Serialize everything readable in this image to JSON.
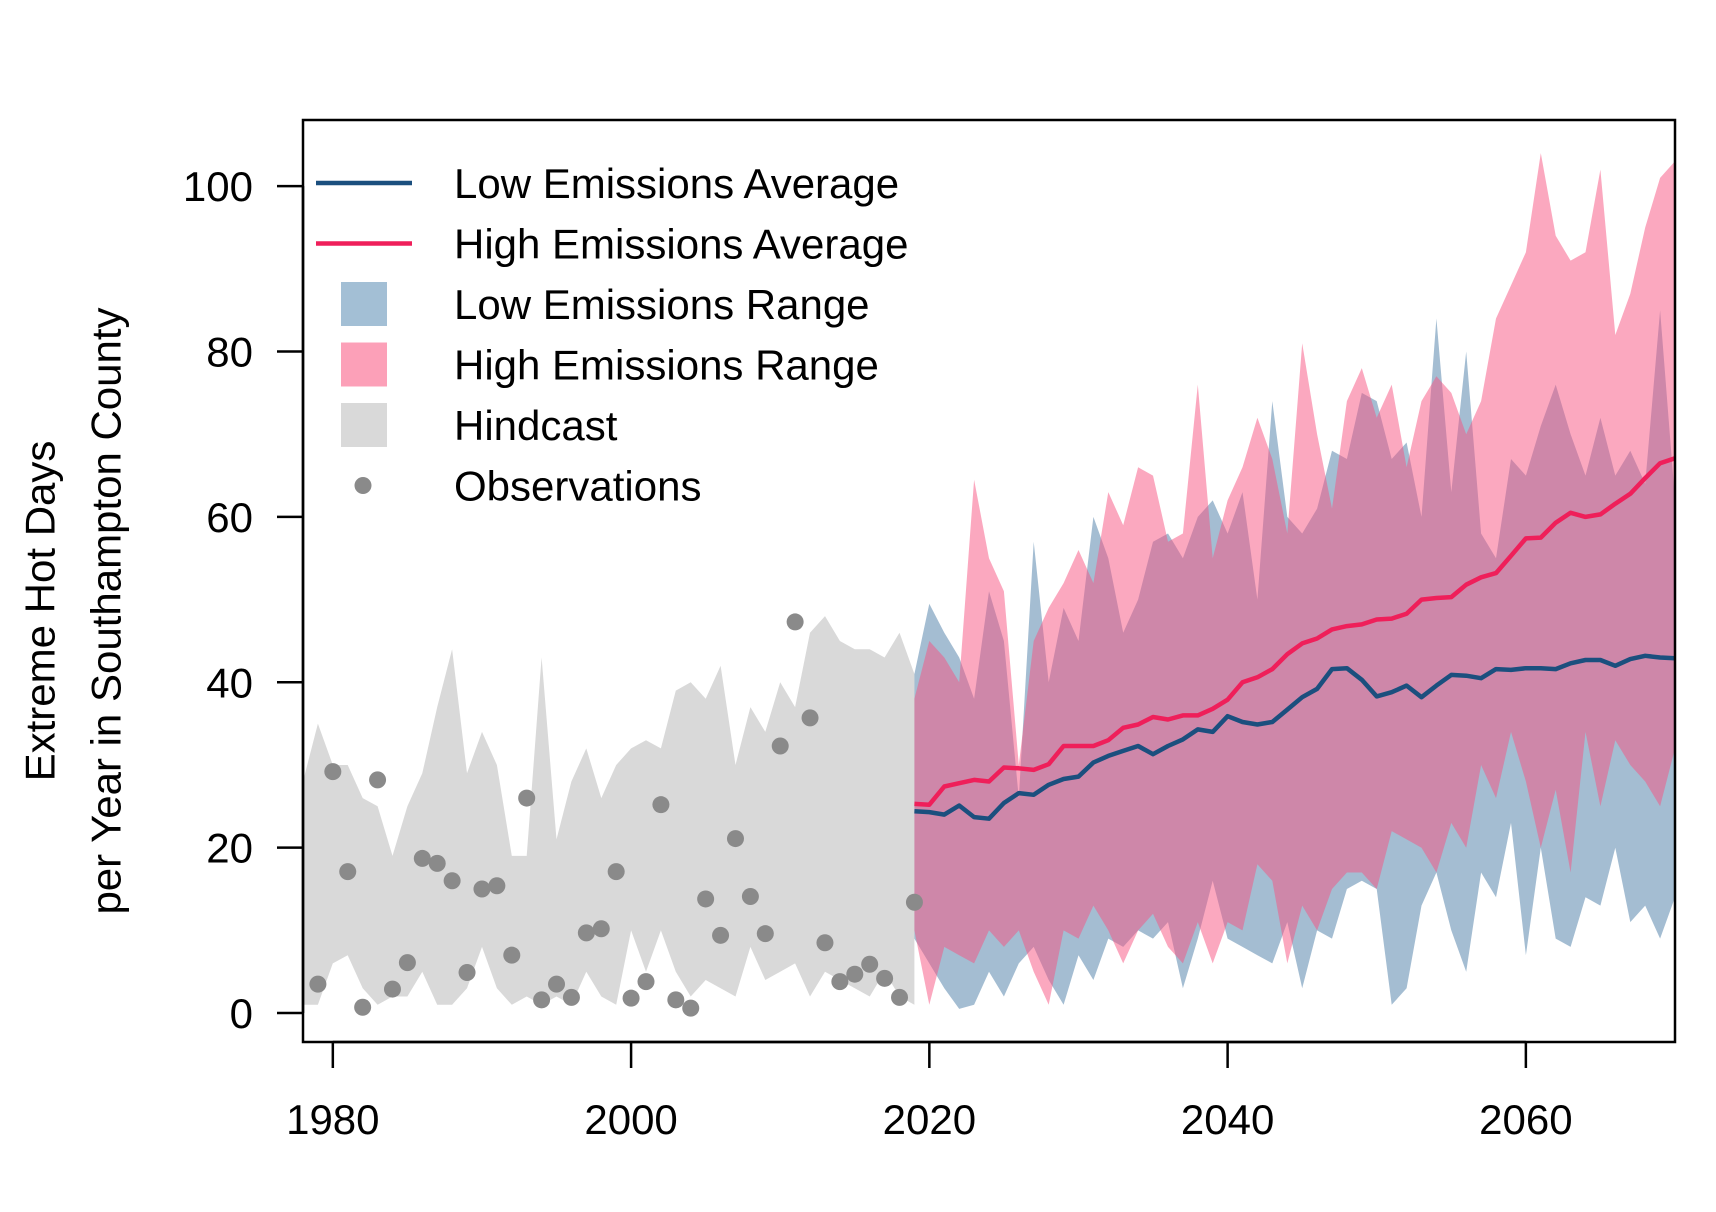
{
  "chart_data": {
    "type": "line",
    "title": "",
    "xlabel": "",
    "ylabel_lines": [
      "Extreme Hot Days",
      "per Year in Southampton County"
    ],
    "xlim": [
      1978,
      2070
    ],
    "ylim": [
      -3.5,
      108
    ],
    "x_ticks": [
      1980,
      2000,
      2020,
      2040,
      2060
    ],
    "y_ticks": [
      0,
      20,
      40,
      60,
      80,
      100
    ],
    "grid": false,
    "legend_position": "top-left",
    "colors": {
      "low_avg": "#1b4f7e",
      "high_avg": "#ef1f5a",
      "low_range": "#8aaec8",
      "high_range": "#fb8fab",
      "hindcast": "#d9d9d9",
      "observations": "#8a8a8a",
      "overlap": "#9e84a3"
    },
    "legend": [
      {
        "label": "Low Emissions Average",
        "kind": "line",
        "color_key": "low_avg"
      },
      {
        "label": "High Emissions Average",
        "kind": "line",
        "color_key": "high_avg"
      },
      {
        "label": "Low Emissions Range",
        "kind": "box",
        "color_key": "low_range"
      },
      {
        "label": "High Emissions Range",
        "kind": "box",
        "color_key": "high_range"
      },
      {
        "label": "Hindcast",
        "kind": "box",
        "color_key": "hindcast"
      },
      {
        "label": "Observations",
        "kind": "point",
        "color_key": "observations"
      }
    ],
    "hindcast": {
      "x": [
        1978,
        1979,
        1980,
        1981,
        1982,
        1983,
        1984,
        1985,
        1986,
        1987,
        1988,
        1989,
        1990,
        1991,
        1992,
        1993,
        1994,
        1995,
        1996,
        1997,
        1998,
        1999,
        2000,
        2001,
        2002,
        2003,
        2004,
        2005,
        2006,
        2007,
        2008,
        2009,
        2010,
        2011,
        2012,
        2013,
        2014,
        2015,
        2016,
        2017,
        2018,
        2019
      ],
      "upper": [
        28,
        35,
        30,
        30,
        26,
        25,
        19,
        25,
        29,
        37,
        44,
        29,
        34,
        30,
        19,
        19,
        43,
        21,
        28,
        32,
        26,
        30,
        32,
        33,
        32,
        39,
        40,
        38,
        42,
        30,
        37,
        34,
        40,
        37,
        46,
        48,
        45,
        44,
        44,
        43,
        46,
        41
      ],
      "lower": [
        1,
        1,
        6,
        7,
        3,
        1,
        2,
        2,
        5,
        1,
        1,
        3,
        8,
        3,
        1,
        2,
        1,
        2,
        1,
        5,
        2,
        1,
        10,
        5,
        10,
        5,
        2,
        4,
        3,
        2,
        8,
        4,
        5,
        6,
        2,
        5,
        4,
        3,
        2,
        5,
        2,
        1
      ]
    },
    "observations": {
      "x": [
        1979,
        1980,
        1981,
        1982,
        1983,
        1984,
        1985,
        1986,
        1987,
        1988,
        1989,
        1990,
        1991,
        1992,
        1993,
        1994,
        1995,
        1996,
        1997,
        1998,
        1999,
        2000,
        2001,
        2002,
        2003,
        2004,
        2005,
        2006,
        2007,
        2008,
        2009,
        2010,
        2011,
        2012,
        2013,
        2014,
        2015,
        2016,
        2017,
        2018,
        2019
      ],
      "y": [
        3.5,
        29.2,
        17.1,
        0.7,
        28.2,
        2.9,
        6.1,
        18.7,
        18.1,
        16.0,
        4.9,
        15.0,
        15.4,
        7.0,
        26.0,
        1.6,
        3.5,
        1.9,
        9.7,
        10.2,
        17.1,
        1.8,
        3.8,
        25.2,
        1.6,
        0.6,
        13.8,
        9.4,
        21.1,
        14.1,
        9.6,
        32.3,
        47.3,
        35.7,
        8.5,
        3.8,
        4.7,
        5.9,
        4.2,
        1.9,
        13.4
      ]
    },
    "series": [
      {
        "name": "Low Emissions Average",
        "color_key": "low_avg",
        "x": [
          2019,
          2020,
          2021,
          2022,
          2023,
          2024,
          2025,
          2026,
          2027,
          2028,
          2029,
          2030,
          2031,
          2032,
          2033,
          2034,
          2035,
          2036,
          2037,
          2038,
          2039,
          2040,
          2041,
          2042,
          2043,
          2044,
          2045,
          2046,
          2047,
          2048,
          2049,
          2050,
          2051,
          2052,
          2053,
          2054,
          2055,
          2056,
          2057,
          2058,
          2059,
          2060,
          2061,
          2062,
          2063,
          2064,
          2065,
          2066,
          2067,
          2068,
          2069,
          2070
        ],
        "y": [
          24.4,
          24.3,
          24.0,
          25.1,
          23.7,
          23.5,
          25.4,
          26.6,
          26.4,
          27.6,
          28.3,
          28.6,
          30.3,
          31.1,
          31.7,
          32.3,
          31.3,
          32.3,
          33.1,
          34.3,
          34.0,
          35.9,
          35.2,
          34.9,
          35.2,
          36.7,
          38.2,
          39.2,
          41.6,
          41.7,
          40.3,
          38.3,
          38.8,
          39.6,
          38.2,
          39.6,
          40.9,
          40.8,
          40.5,
          41.6,
          41.5,
          41.7,
          41.7,
          41.6,
          42.3,
          42.7,
          42.7,
          42.0,
          42.8,
          43.2,
          43.0,
          42.9
        ]
      },
      {
        "name": "High Emissions Average",
        "color_key": "high_avg",
        "x": [
          2019,
          2020,
          2021,
          2022,
          2023,
          2024,
          2025,
          2026,
          2027,
          2028,
          2029,
          2030,
          2031,
          2032,
          2033,
          2034,
          2035,
          2036,
          2037,
          2038,
          2039,
          2040,
          2041,
          2042,
          2043,
          2044,
          2045,
          2046,
          2047,
          2048,
          2049,
          2050,
          2051,
          2052,
          2053,
          2054,
          2055,
          2056,
          2057,
          2058,
          2059,
          2060,
          2061,
          2062,
          2063,
          2064,
          2065,
          2066,
          2067,
          2068,
          2069,
          2070
        ],
        "y": [
          25.3,
          25.2,
          27.4,
          27.8,
          28.2,
          28.0,
          29.7,
          29.6,
          29.4,
          30.1,
          32.3,
          32.3,
          32.3,
          33.0,
          34.5,
          34.9,
          35.8,
          35.5,
          36.0,
          36.0,
          36.8,
          37.9,
          40.0,
          40.6,
          41.6,
          43.4,
          44.7,
          45.3,
          46.4,
          46.8,
          47.0,
          47.6,
          47.7,
          48.3,
          50.0,
          50.2,
          50.3,
          51.8,
          52.7,
          53.2,
          55.3,
          57.4,
          57.5,
          59.3,
          60.5,
          60.0,
          60.3,
          61.6,
          62.8,
          64.7,
          66.5,
          67.1
        ]
      }
    ],
    "low_range": {
      "x": [
        2019,
        2020,
        2021,
        2022,
        2023,
        2024,
        2025,
        2026,
        2027,
        2028,
        2029,
        2030,
        2031,
        2032,
        2033,
        2034,
        2035,
        2036,
        2037,
        2038,
        2039,
        2040,
        2041,
        2042,
        2043,
        2044,
        2045,
        2046,
        2047,
        2048,
        2049,
        2050,
        2051,
        2052,
        2053,
        2054,
        2055,
        2056,
        2057,
        2058,
        2059,
        2060,
        2061,
        2062,
        2063,
        2064,
        2065,
        2066,
        2067,
        2068,
        2069,
        2070
      ],
      "upper": [
        41,
        49.5,
        46,
        43,
        38,
        51,
        45,
        26,
        57,
        40,
        49,
        45,
        60,
        55,
        46,
        50,
        57,
        58,
        55,
        60,
        62,
        58,
        63,
        50,
        74,
        60,
        58,
        61,
        68,
        67,
        75,
        74,
        67,
        69,
        60,
        84,
        63,
        80,
        58,
        55,
        67,
        65,
        71,
        76,
        70,
        65,
        72,
        65,
        68,
        64,
        85,
        62
      ],
      "lower": [
        9,
        6,
        3,
        0.5,
        1,
        5,
        2,
        6,
        8,
        4,
        1,
        7,
        4,
        9,
        8,
        10,
        9,
        11,
        3,
        9,
        16,
        9,
        8,
        7,
        6,
        11,
        3,
        10,
        9,
        15,
        16,
        15,
        1,
        3,
        13,
        17,
        10,
        5,
        17,
        14,
        23,
        7,
        20,
        9,
        8,
        14,
        13,
        20,
        11,
        13,
        9,
        14
      ]
    },
    "high_range": {
      "x": [
        2019,
        2020,
        2021,
        2022,
        2023,
        2024,
        2025,
        2026,
        2027,
        2028,
        2029,
        2030,
        2031,
        2032,
        2033,
        2034,
        2035,
        2036,
        2037,
        2038,
        2039,
        2040,
        2041,
        2042,
        2043,
        2044,
        2045,
        2046,
        2047,
        2048,
        2049,
        2050,
        2051,
        2052,
        2053,
        2054,
        2055,
        2056,
        2057,
        2058,
        2059,
        2060,
        2061,
        2062,
        2063,
        2064,
        2065,
        2066,
        2067,
        2068,
        2069,
        2070
      ],
      "upper": [
        38,
        45,
        43,
        40,
        64.5,
        55,
        51,
        30,
        45,
        49,
        52,
        56,
        52,
        63,
        59,
        66,
        65,
        57,
        58,
        76,
        55,
        62,
        66,
        72,
        67,
        58,
        81,
        70,
        61,
        74,
        78,
        72,
        76,
        66,
        74,
        77,
        75,
        70,
        74,
        84,
        88,
        92,
        104,
        94,
        91,
        92,
        102,
        82,
        87,
        95,
        101,
        103
      ],
      "lower": [
        10,
        1,
        8,
        7,
        6,
        10,
        8,
        10,
        5,
        1,
        10,
        9,
        13,
        10,
        6,
        10,
        12,
        8,
        6,
        11,
        6,
        11,
        10,
        18,
        16,
        6,
        13,
        10,
        15,
        17,
        17,
        15,
        22,
        21,
        20,
        17,
        23,
        20,
        30,
        26,
        34,
        28,
        20,
        27,
        17,
        34,
        25,
        33,
        30,
        28,
        25,
        32
      ]
    }
  }
}
